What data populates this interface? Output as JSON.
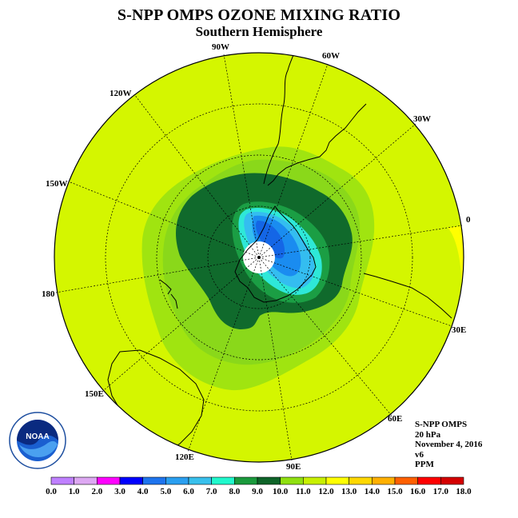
{
  "title": "S-NPP OMPS OZONE MIXING RATIO",
  "subtitle": "Southern Hemisphere",
  "longitude_labels": [
    "90W",
    "60W",
    "30W",
    "0",
    "30E",
    "60E",
    "90E",
    "120E",
    "150E",
    "180",
    "150W",
    "120W"
  ],
  "info": {
    "instrument": "S-NPP OMPS",
    "level": "20 hPa",
    "date": "November 4, 2016",
    "version": "v6",
    "units": "PPM"
  },
  "colorbar": {
    "ticks": [
      "0.0",
      "1.0",
      "2.0",
      "3.0",
      "4.0",
      "5.0",
      "6.0",
      "7.0",
      "8.0",
      "9.0",
      "10.0",
      "11.0",
      "12.0",
      "13.0",
      "14.0",
      "15.0",
      "16.0",
      "17.0",
      "18.0"
    ],
    "colors": [
      "#bf80ff",
      "#dda8f2",
      "#ff00ff",
      "#0000ff",
      "#1e74ee",
      "#2a9ff0",
      "#38c0ec",
      "#20f8cc",
      "#1a9a3c",
      "#0e6428",
      "#90e010",
      "#c8f000",
      "#ffff00",
      "#ffd800",
      "#ffb000",
      "#ff6000",
      "#ff0000",
      "#d40000",
      "#9a6040"
    ]
  },
  "logo": {
    "text": "NOAA"
  },
  "map": {
    "projection": "south-polar-stereographic",
    "field": "ozone mixing ratio",
    "background_level": "11.0-12.0",
    "colors": {
      "ocean_fill": "#d4f600",
      "level_10_11": "#a0e410",
      "level_9_10": "#8ad81a",
      "level_8_9": "#106a2c",
      "level_7_8": "#1b9e44",
      "level_6_7": "#2ee8d8",
      "level_5_6": "#34bdf0",
      "level_4_5": "#1a8cf0",
      "level_3_4": "#1466e6",
      "level_12_13": "#ffff00",
      "pole_hole": "#ffffff"
    }
  }
}
